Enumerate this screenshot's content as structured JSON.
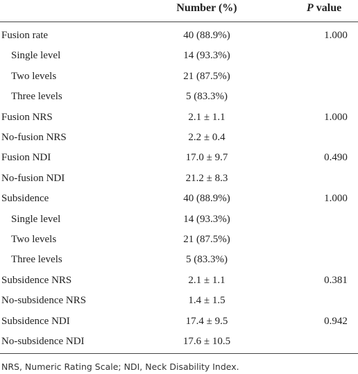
{
  "header": {
    "number": "Number (%)",
    "p_symbol": "P",
    "p_rest": "value"
  },
  "rows": [
    {
      "label": "Fusion rate",
      "number": "40 (88.9%)",
      "p": "1.000",
      "children": [
        {
          "label": "Single level",
          "number": "14 (93.3%)"
        },
        {
          "label": "Two levels",
          "number": "21 (87.5%)"
        },
        {
          "label": "Three levels",
          "number": "5 (83.3%)"
        }
      ]
    },
    {
      "label": "Fusion NRS",
      "number": "2.1 ± 1.1",
      "p": "1.000"
    },
    {
      "label": "No-fusion NRS",
      "number": "2.2 ± 0.4"
    },
    {
      "label": "Fusion NDI",
      "number": "17.0 ± 9.7",
      "p": "0.490"
    },
    {
      "label": "No-fusion NDI",
      "number": "21.2 ± 8.3"
    },
    {
      "label": "Subsidence",
      "number": "40 (88.9%)",
      "p": "1.000",
      "children": [
        {
          "label": "Single level",
          "number": "14 (93.3%)"
        },
        {
          "label": "Two levels",
          "number": "21 (87.5%)"
        },
        {
          "label": "Three levels",
          "number": "5 (83.3%)"
        }
      ]
    },
    {
      "label": "Subsidence NRS",
      "number": "2.1 ± 1.1",
      "p": "0.381"
    },
    {
      "label": "No-subsidence NRS",
      "number": "1.4 ± 1.5"
    },
    {
      "label": "Subsidence NDI",
      "number": "17.4 ± 9.5",
      "p": "0.942"
    },
    {
      "label": "No-subsidence NDI",
      "number": "17.6 ± 10.5"
    }
  ],
  "footnote": "NRS, Numeric Rating Scale; NDI, Neck Disability Index."
}
